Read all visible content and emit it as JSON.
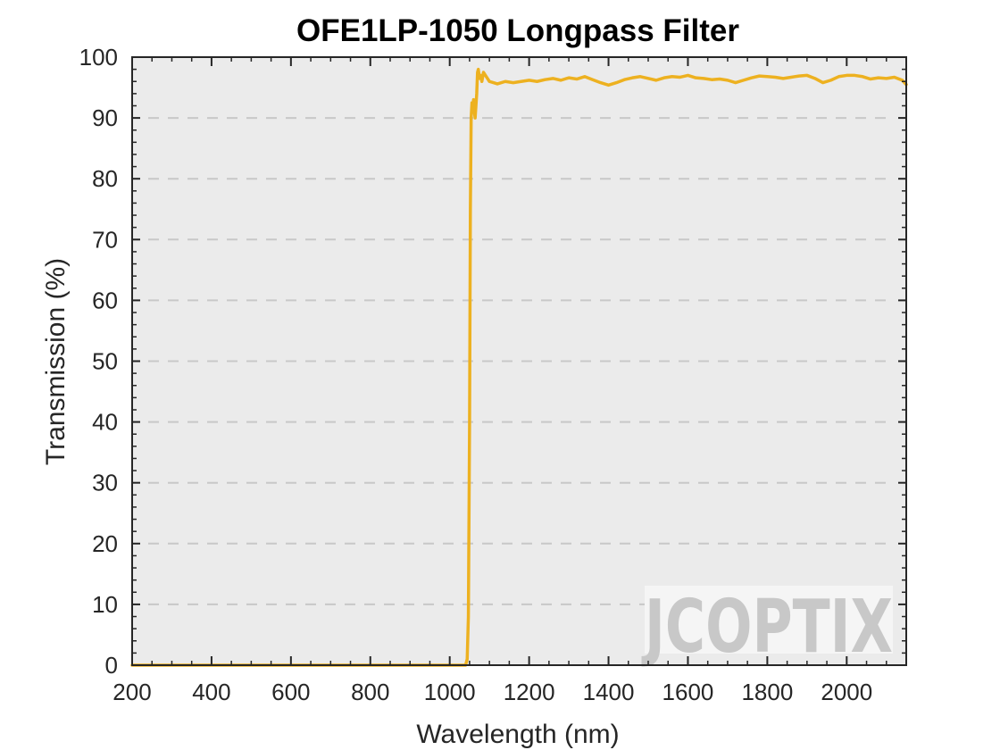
{
  "chart_data": {
    "type": "line",
    "title": "OFE1LP-1050 Longpass Filter",
    "xlabel": "Wavelength (nm)",
    "ylabel": "Transmission (%)",
    "xlim": [
      200,
      2150
    ],
    "ylim": [
      0,
      100
    ],
    "xticks": [
      "200",
      "400",
      "600",
      "800",
      "1000",
      "1200",
      "1400",
      "1600",
      "1800",
      "2000"
    ],
    "yticks": [
      "0",
      "10",
      "20",
      "30",
      "40",
      "50",
      "60",
      "70",
      "80",
      "90",
      "100"
    ],
    "grid": "horizontal dashed",
    "series": [
      {
        "color": "#EDB120",
        "x": [
          200,
          400,
          600,
          800,
          1000,
          1040,
          1044,
          1047,
          1050,
          1052,
          1054,
          1056,
          1058,
          1060,
          1062,
          1064,
          1066,
          1068,
          1070,
          1072,
          1075,
          1078,
          1081,
          1085,
          1090,
          1095,
          1100,
          1110,
          1120,
          1140,
          1160,
          1180,
          1200,
          1220,
          1240,
          1260,
          1280,
          1300,
          1320,
          1340,
          1360,
          1380,
          1400,
          1420,
          1440,
          1460,
          1480,
          1500,
          1520,
          1540,
          1560,
          1580,
          1600,
          1620,
          1640,
          1660,
          1680,
          1700,
          1720,
          1740,
          1760,
          1780,
          1800,
          1820,
          1840,
          1860,
          1880,
          1900,
          1920,
          1940,
          1960,
          1980,
          2000,
          2020,
          2040,
          2060,
          2080,
          2100,
          2120,
          2140,
          2150
        ],
        "y": [
          0,
          0,
          0,
          0,
          0,
          0,
          1,
          8,
          40,
          75,
          90,
          92.5,
          91.5,
          93,
          91,
          90,
          92,
          94,
          97.5,
          98,
          96.5,
          97,
          96,
          97.5,
          97,
          96.5,
          96,
          95.8,
          95.6,
          96,
          95.8,
          96,
          96.2,
          96,
          96.3,
          96.5,
          96.2,
          96.6,
          96.4,
          96.8,
          96.3,
          95.8,
          95.4,
          95.8,
          96.3,
          96.6,
          96.8,
          96.5,
          96.2,
          96.6,
          96.8,
          96.7,
          97,
          96.6,
          96.5,
          96.3,
          96.4,
          96.2,
          95.8,
          96.2,
          96.6,
          96.9,
          96.8,
          96.7,
          96.5,
          96.7,
          96.9,
          97,
          96.5,
          95.8,
          96.2,
          96.8,
          97,
          97,
          96.8,
          96.4,
          96.6,
          96.5,
          96.7,
          96.2,
          95.5
        ]
      }
    ]
  },
  "colors": {
    "plot_background": "#EBEBEB",
    "series": "#EDB120",
    "grid": "#C8C8C8",
    "watermark_gray": "#C8C8C8",
    "watermark_accent": "#F3C9A6"
  },
  "watermark": {
    "text": "JCOPTIX"
  }
}
